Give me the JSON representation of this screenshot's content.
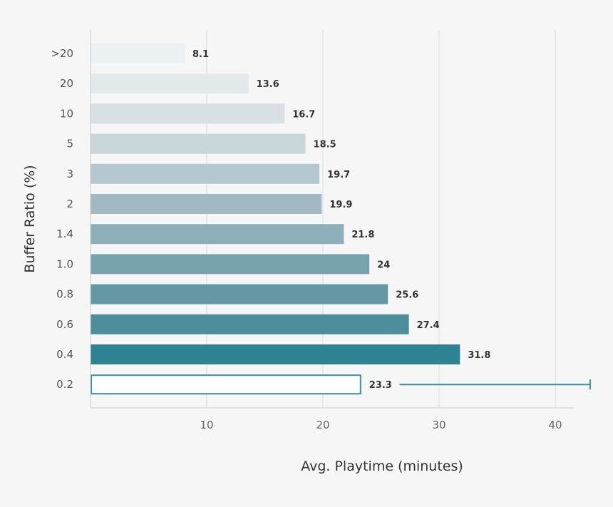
{
  "chart_data": {
    "type": "bar",
    "orientation": "horizontal",
    "xlabel": "Avg. Playtime (minutes)",
    "ylabel": "Buffer Ratio (%)",
    "xlim": [
      0,
      42
    ],
    "xticks": [
      10,
      20,
      30,
      40
    ],
    "grid": true,
    "categories": [
      ">20",
      "20",
      "10",
      "5",
      "3",
      "2",
      "1.4",
      "1.0",
      "0.8",
      "0.6",
      "0.4",
      "0.2"
    ],
    "values": [
      8.1,
      13.6,
      16.7,
      18.5,
      19.7,
      19.9,
      21.8,
      24,
      25.6,
      27.4,
      31.8,
      23.3
    ],
    "value_labels": [
      "8.1",
      "13.6",
      "16.7",
      "18.5",
      "19.7",
      "19.9",
      "21.8",
      "24",
      "25.6",
      "27.4",
      "31.8",
      "23.3"
    ],
    "colors": [
      "#eef1f3",
      "#e3e8eb",
      "#d9e0e4",
      "#c9d6dc",
      "#b5c8cf",
      "#a2b9c3",
      "#8cafba",
      "#78a3ae",
      "#6398a4",
      "#4c8e9b",
      "#2e8393",
      "#ffffff"
    ],
    "outline_color": "#3b8f9e",
    "outlined_category": "0.2",
    "error_bar": {
      "category": "0.2",
      "low": 26.6,
      "high": 43,
      "color": "#3b8f9e"
    }
  }
}
